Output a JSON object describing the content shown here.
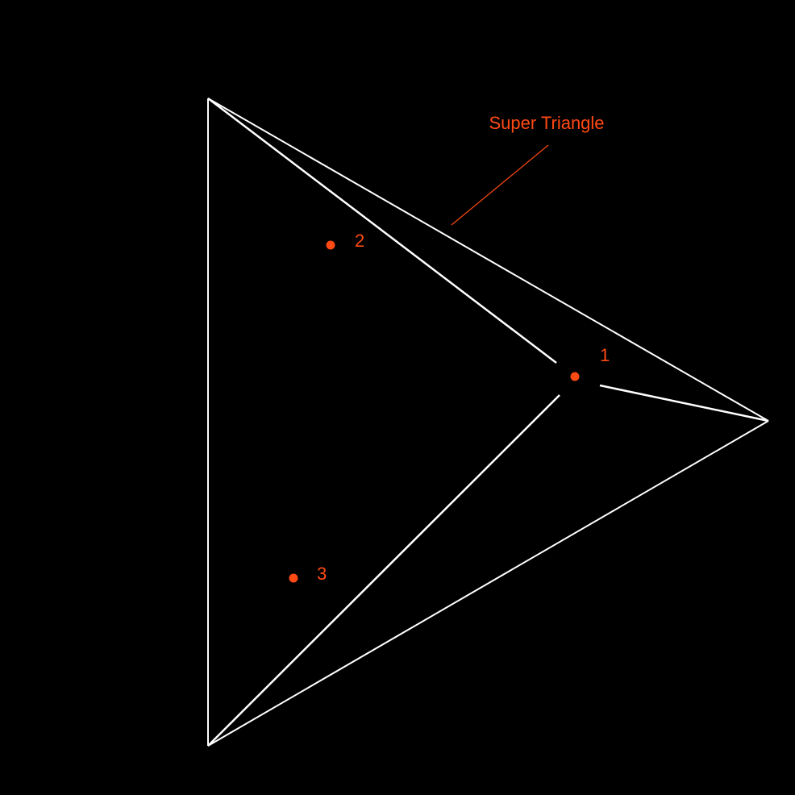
{
  "colors": {
    "background": "#000000",
    "edge": "#ffffff",
    "accent": "#ff4a14"
  },
  "annotation": {
    "text": "Super Triangle"
  },
  "points": [
    {
      "id": "p1",
      "label": "1"
    },
    {
      "id": "p2",
      "label": "2"
    },
    {
      "id": "p3",
      "label": "3"
    }
  ]
}
